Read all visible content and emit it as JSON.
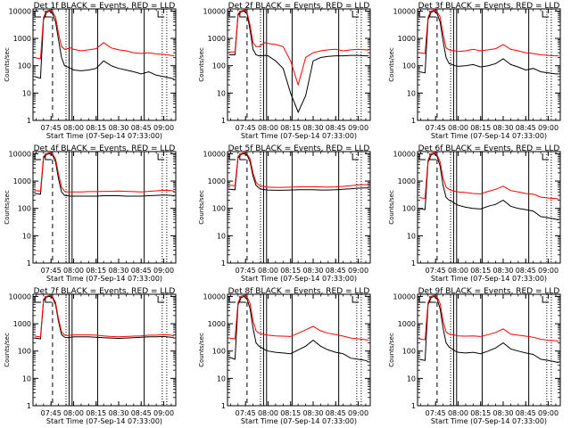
{
  "colors": {
    "events": "#000000",
    "lld": "#ff0000",
    "background": "#ffffff"
  },
  "time_axis": {
    "tick_labels": [
      "07:45",
      "08:00",
      "08:15",
      "08:30",
      "08:45",
      "09:00"
    ],
    "xlabel": "Start Time (07-Sep-14 07:33:00)"
  },
  "y_axis": {
    "ylabel": "Counts/sec",
    "scale": "log",
    "ylim": [
      1,
      12000
    ],
    "tick_labels": [
      "1",
      "10",
      "100",
      "1000",
      "10000"
    ]
  },
  "markers": {
    "dashed": [
      "07:46"
    ],
    "dotted": [
      "07:55",
      "08:59",
      "09:02"
    ],
    "solid": [
      "07:57",
      "07:59",
      "08:16",
      "08:47"
    ]
  },
  "chart_data": [
    {
      "type": "line",
      "title": "Det 1f BLACK = Events, RED = LLD",
      "x_unit": "time",
      "xlim": [
        "07:33",
        "09:08"
      ],
      "yscale": "log",
      "ylim": [
        1,
        12000
      ],
      "xlabel": "Start Time (07-Sep-14 07:33:00)",
      "ylabel": "Counts/sec",
      "x": [
        "07:34",
        "07:38",
        "07:40",
        "07:42",
        "07:44",
        "07:46",
        "07:48",
        "07:50",
        "07:52",
        "07:54",
        "07:56",
        "07:58",
        "08:00",
        "08:05",
        "08:10",
        "08:15",
        "08:20",
        "08:25",
        "08:30",
        "08:35",
        "08:40",
        "08:45",
        "08:50",
        "08:55",
        "09:00",
        "09:05",
        "09:07"
      ],
      "series": [
        {
          "name": "Events",
          "values": [
            40,
            35,
            5000,
            9000,
            10000,
            8000,
            4000,
            900,
            200,
            100,
            90,
            80,
            70,
            65,
            70,
            80,
            150,
            100,
            80,
            70,
            60,
            50,
            60,
            45,
            40,
            35,
            32
          ]
        },
        {
          "name": "LLD",
          "values": [
            200,
            180,
            6000,
            10000,
            11000,
            9500,
            6000,
            1500,
            500,
            400,
            420,
            450,
            400,
            350,
            380,
            420,
            700,
            450,
            380,
            350,
            300,
            280,
            300,
            270,
            260,
            240,
            230
          ]
        }
      ]
    },
    {
      "type": "line",
      "title": "Det 2f BLACK = Events, RED = LLD",
      "x_unit": "time",
      "xlim": [
        "07:33",
        "09:08"
      ],
      "yscale": "log",
      "ylim": [
        1,
        12000
      ],
      "xlabel": "Start Time (07-Sep-14 07:33:00)",
      "ylabel": "Counts/sec",
      "x": [
        "07:34",
        "07:38",
        "07:40",
        "07:42",
        "07:44",
        "07:46",
        "07:48",
        "07:50",
        "07:52",
        "07:54",
        "07:56",
        "07:58",
        "08:00",
        "08:05",
        "08:10",
        "08:15",
        "08:20",
        "08:25",
        "08:30",
        "08:35",
        "08:40",
        "08:45",
        "08:50",
        "08:55",
        "09:00",
        "09:05",
        "09:07"
      ],
      "series": [
        {
          "name": "Events",
          "values": [
            250,
            250,
            7000,
            9500,
            10000,
            8000,
            2000,
            400,
            250,
            230,
            230,
            240,
            230,
            150,
            80,
            10,
            2,
            8,
            150,
            200,
            220,
            230,
            230,
            240,
            240,
            230,
            230
          ]
        },
        {
          "name": "LLD",
          "values": [
            320,
            320,
            8000,
            10000,
            11000,
            9000,
            3000,
            700,
            500,
            500,
            600,
            700,
            650,
            600,
            500,
            150,
            20,
            200,
            300,
            350,
            380,
            400,
            350,
            380,
            400,
            380,
            370
          ]
        }
      ]
    },
    {
      "type": "line",
      "title": "Det 3f BLACK = Events, RED = LLD",
      "x_unit": "time",
      "xlim": [
        "07:33",
        "09:08"
      ],
      "yscale": "log",
      "ylim": [
        1,
        12000
      ],
      "xlabel": "Start Time (07-Sep-14 07:33:00)",
      "ylabel": "Counts/sec",
      "x": [
        "07:34",
        "07:38",
        "07:40",
        "07:42",
        "07:44",
        "07:46",
        "07:48",
        "07:50",
        "07:52",
        "07:54",
        "07:56",
        "07:58",
        "08:00",
        "08:05",
        "08:10",
        "08:15",
        "08:20",
        "08:25",
        "08:30",
        "08:35",
        "08:40",
        "08:45",
        "08:50",
        "08:55",
        "09:00",
        "09:05",
        "09:07"
      ],
      "series": [
        {
          "name": "Events",
          "values": [
            60,
            55,
            5000,
            9000,
            10000,
            8000,
            4000,
            800,
            200,
            120,
            110,
            100,
            95,
            100,
            110,
            90,
            100,
            120,
            180,
            110,
            90,
            70,
            80,
            60,
            55,
            50,
            50
          ]
        },
        {
          "name": "LLD",
          "values": [
            300,
            280,
            6000,
            10000,
            11000,
            9500,
            6000,
            1500,
            450,
            380,
            360,
            350,
            330,
            350,
            400,
            350,
            380,
            420,
            600,
            400,
            350,
            300,
            280,
            250,
            240,
            230,
            230
          ]
        }
      ]
    },
    {
      "type": "line",
      "title": "Det 4f BLACK = Events, RED = LLD",
      "x_unit": "time",
      "xlim": [
        "07:33",
        "09:08"
      ],
      "yscale": "log",
      "ylim": [
        1,
        12000
      ],
      "xlabel": "Start Time (07-Sep-14 07:33:00)",
      "ylabel": "Counts/sec",
      "x": [
        "07:34",
        "07:38",
        "07:40",
        "07:42",
        "07:44",
        "07:46",
        "07:48",
        "07:50",
        "07:52",
        "07:54",
        "07:56",
        "07:58",
        "08:00",
        "08:05",
        "08:10",
        "08:15",
        "08:20",
        "08:25",
        "08:30",
        "08:35",
        "08:40",
        "08:45",
        "08:50",
        "08:55",
        "09:00",
        "09:05",
        "09:07"
      ],
      "series": [
        {
          "name": "Events",
          "values": [
            350,
            330,
            7000,
            9500,
            10000,
            9000,
            5000,
            1200,
            400,
            300,
            290,
            280,
            280,
            280,
            280,
            280,
            290,
            290,
            290,
            280,
            280,
            280,
            290,
            300,
            310,
            300,
            280
          ]
        },
        {
          "name": "LLD",
          "values": [
            450,
            430,
            8000,
            10000,
            11000,
            9800,
            6500,
            1800,
            600,
            420,
            400,
            400,
            400,
            400,
            410,
            410,
            420,
            420,
            430,
            420,
            410,
            400,
            420,
            440,
            460,
            450,
            420
          ]
        }
      ]
    },
    {
      "type": "line",
      "title": "Det 5f BLACK = Events, RED = LLD",
      "x_unit": "time",
      "xlim": [
        "07:33",
        "09:08"
      ],
      "yscale": "log",
      "ylim": [
        1,
        12000
      ],
      "xlabel": "Start Time (07-Sep-14 07:33:00)",
      "ylabel": "Counts/sec",
      "x": [
        "07:34",
        "07:38",
        "07:40",
        "07:42",
        "07:44",
        "07:46",
        "07:48",
        "07:50",
        "07:52",
        "07:54",
        "07:56",
        "07:58",
        "08:00",
        "08:05",
        "08:10",
        "08:15",
        "08:20",
        "08:25",
        "08:30",
        "08:35",
        "08:40",
        "08:45",
        "08:50",
        "08:55",
        "09:00",
        "09:05",
        "09:07"
      ],
      "series": [
        {
          "name": "Events",
          "values": [
            500,
            480,
            7000,
            9500,
            10000,
            9000,
            5000,
            1500,
            700,
            550,
            500,
            480,
            470,
            460,
            460,
            470,
            480,
            480,
            480,
            470,
            470,
            480,
            500,
            520,
            550,
            560,
            560
          ]
        },
        {
          "name": "LLD",
          "values": [
            700,
            680,
            8000,
            10000,
            11000,
            9800,
            6500,
            2000,
            900,
            700,
            650,
            620,
            600,
            590,
            590,
            600,
            610,
            620,
            620,
            610,
            600,
            610,
            640,
            680,
            720,
            740,
            740
          ]
        }
      ]
    },
    {
      "type": "line",
      "title": "Det 6f BLACK = Events, RED = LLD",
      "x_unit": "time",
      "xlim": [
        "07:33",
        "09:08"
      ],
      "yscale": "log",
      "ylim": [
        1,
        12000
      ],
      "xlabel": "Start Time (07-Sep-14 07:33:00)",
      "ylabel": "Counts/sec",
      "x": [
        "07:34",
        "07:38",
        "07:40",
        "07:42",
        "07:44",
        "07:46",
        "07:48",
        "07:50",
        "07:52",
        "07:54",
        "07:56",
        "07:58",
        "08:00",
        "08:05",
        "08:10",
        "08:15",
        "08:20",
        "08:25",
        "08:30",
        "08:35",
        "08:40",
        "08:45",
        "08:50",
        "08:55",
        "09:00",
        "09:05",
        "09:07"
      ],
      "series": [
        {
          "name": "Events",
          "values": [
            100,
            90,
            5000,
            9000,
            10000,
            8000,
            3500,
            700,
            250,
            200,
            180,
            150,
            130,
            110,
            100,
            95,
            120,
            140,
            200,
            120,
            100,
            90,
            80,
            50,
            45,
            40,
            38
          ]
        },
        {
          "name": "LLD",
          "values": [
            250,
            230,
            6000,
            10000,
            11000,
            9000,
            5000,
            1300,
            600,
            500,
            450,
            420,
            400,
            380,
            350,
            340,
            420,
            500,
            650,
            450,
            400,
            350,
            330,
            260,
            240,
            230,
            220
          ]
        }
      ]
    },
    {
      "type": "line",
      "title": "Det 7f BLACK = Events, RED = LLD",
      "x_unit": "time",
      "xlim": [
        "07:33",
        "09:08"
      ],
      "yscale": "log",
      "ylim": [
        1,
        12000
      ],
      "xlabel": "Start Time (07-Sep-14 07:33:00)",
      "ylabel": "Counts/sec",
      "x": [
        "07:34",
        "07:38",
        "07:40",
        "07:42",
        "07:44",
        "07:46",
        "07:48",
        "07:50",
        "07:52",
        "07:54",
        "07:56",
        "07:58",
        "08:00",
        "08:05",
        "08:10",
        "08:15",
        "08:20",
        "08:25",
        "08:30",
        "08:35",
        "08:40",
        "08:45",
        "08:50",
        "08:55",
        "09:00",
        "09:05",
        "09:07"
      ],
      "series": [
        {
          "name": "Events",
          "values": [
            300,
            280,
            7000,
            9500,
            10000,
            9000,
            5000,
            1200,
            400,
            320,
            310,
            320,
            330,
            330,
            330,
            320,
            310,
            300,
            290,
            300,
            310,
            320,
            330,
            330,
            340,
            320,
            300
          ]
        },
        {
          "name": "LLD",
          "values": [
            350,
            330,
            8000,
            10000,
            11000,
            9800,
            6000,
            1500,
            500,
            380,
            370,
            380,
            390,
            390,
            390,
            380,
            360,
            340,
            330,
            340,
            350,
            360,
            380,
            380,
            400,
            380,
            350
          ]
        }
      ]
    },
    {
      "type": "line",
      "title": "Det 8f BLACK = Events, RED = LLD",
      "x_unit": "time",
      "xlim": [
        "07:33",
        "09:08"
      ],
      "yscale": "log",
      "ylim": [
        1,
        12000
      ],
      "xlabel": "Start Time (07-Sep-14 07:33:00)",
      "ylabel": "Counts/sec",
      "x": [
        "07:34",
        "07:38",
        "07:40",
        "07:42",
        "07:44",
        "07:46",
        "07:48",
        "07:50",
        "07:52",
        "07:54",
        "07:56",
        "07:58",
        "08:00",
        "08:05",
        "08:10",
        "08:15",
        "08:20",
        "08:25",
        "08:30",
        "08:35",
        "08:40",
        "08:45",
        "08:50",
        "08:55",
        "09:00",
        "09:05",
        "09:07"
      ],
      "series": [
        {
          "name": "Events",
          "values": [
            60,
            50,
            5000,
            9000,
            10000,
            8000,
            3500,
            700,
            200,
            150,
            130,
            110,
            100,
            90,
            85,
            80,
            110,
            150,
            250,
            150,
            110,
            90,
            80,
            55,
            50,
            45,
            40
          ]
        },
        {
          "name": "LLD",
          "values": [
            300,
            280,
            6000,
            10000,
            11000,
            9500,
            5500,
            1300,
            550,
            450,
            420,
            400,
            380,
            360,
            350,
            340,
            450,
            600,
            800,
            550,
            450,
            400,
            350,
            300,
            280,
            260,
            250
          ]
        }
      ]
    },
    {
      "type": "line",
      "title": "Det 9f BLACK = Events, RED = LLD",
      "x_unit": "time",
      "xlim": [
        "07:33",
        "09:08"
      ],
      "yscale": "log",
      "ylim": [
        1,
        12000
      ],
      "xlabel": "Start Time (07-Sep-14 07:33:00)",
      "ylabel": "Counts/sec",
      "x": [
        "07:34",
        "07:38",
        "07:40",
        "07:42",
        "07:44",
        "07:46",
        "07:48",
        "07:50",
        "07:52",
        "07:54",
        "07:56",
        "07:58",
        "08:00",
        "08:05",
        "08:10",
        "08:15",
        "08:20",
        "08:25",
        "08:30",
        "08:35",
        "08:40",
        "08:45",
        "08:50",
        "08:55",
        "09:00",
        "09:05",
        "09:07"
      ],
      "series": [
        {
          "name": "Events",
          "values": [
            50,
            45,
            5000,
            9000,
            10000,
            8000,
            3500,
            700,
            200,
            140,
            120,
            100,
            90,
            85,
            90,
            80,
            100,
            130,
            200,
            120,
            100,
            85,
            75,
            50,
            45,
            40,
            38
          ]
        },
        {
          "name": "LLD",
          "values": [
            280,
            260,
            6000,
            10000,
            11000,
            9500,
            5500,
            1300,
            500,
            420,
            400,
            380,
            360,
            350,
            360,
            340,
            400,
            480,
            650,
            420,
            380,
            350,
            320,
            270,
            250,
            240,
            230
          ]
        }
      ]
    }
  ]
}
